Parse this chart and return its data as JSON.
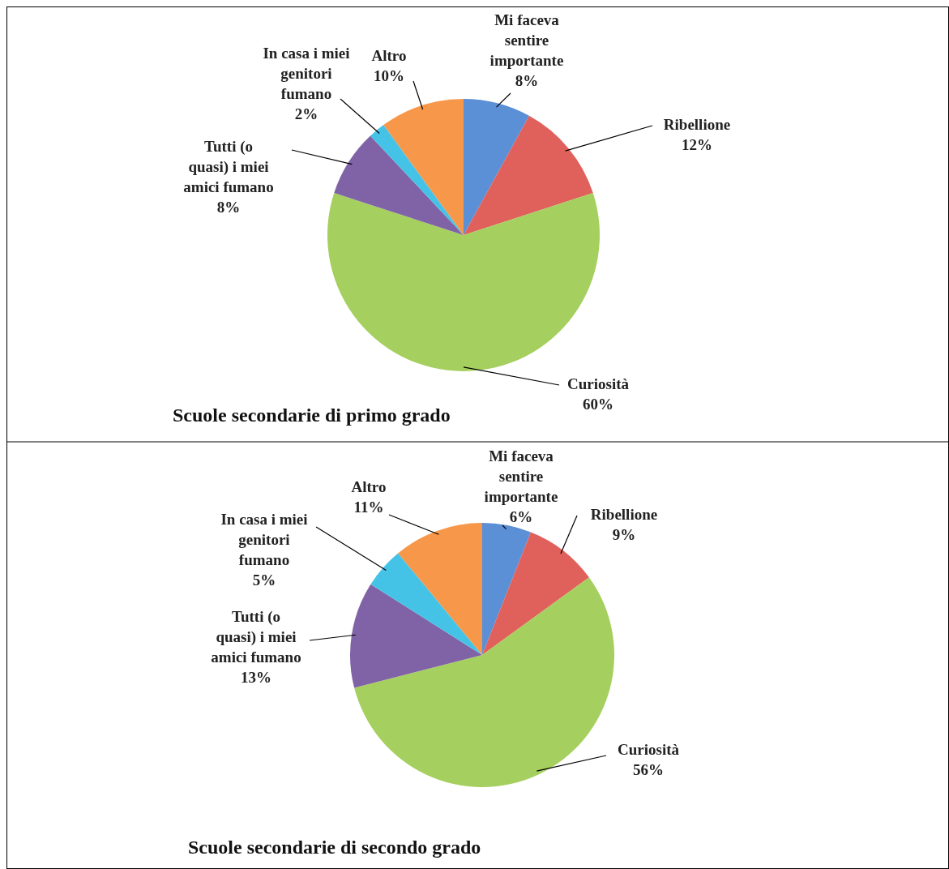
{
  "chart_data": [
    {
      "type": "pie",
      "title": "Scuole secondarie di primo grado",
      "categories": [
        "Mi faceva sentire importante",
        "Ribellione",
        "Curiosità",
        "Tutti (o quasi) i miei amici fumano",
        "In casa i miei genitori fumano",
        "Altro"
      ],
      "values": [
        8,
        12,
        60,
        8,
        2,
        10
      ],
      "value_labels": [
        "8%",
        "12%",
        "60%",
        "8%",
        "2%",
        "10%"
      ],
      "colors": [
        "#5b8fd6",
        "#e0605c",
        "#a5cf5e",
        "#8063a6",
        "#45c3e6",
        "#f7974a"
      ]
    },
    {
      "type": "pie",
      "title": "Scuole secondarie di secondo grado",
      "categories": [
        "Mi faceva sentire importante",
        "Ribellione",
        "Curiosità",
        "Tutti (o quasi) i miei amici fumano",
        "In casa i miei genitori fumano",
        "Altro"
      ],
      "values": [
        6,
        9,
        56,
        13,
        5,
        11
      ],
      "value_labels": [
        "6%",
        "9%",
        "56%",
        "13%",
        "5%",
        "11%"
      ],
      "colors": [
        "#5b8fd6",
        "#e0605c",
        "#a5cf5e",
        "#8063a6",
        "#45c3e6",
        "#f7974a"
      ]
    }
  ]
}
